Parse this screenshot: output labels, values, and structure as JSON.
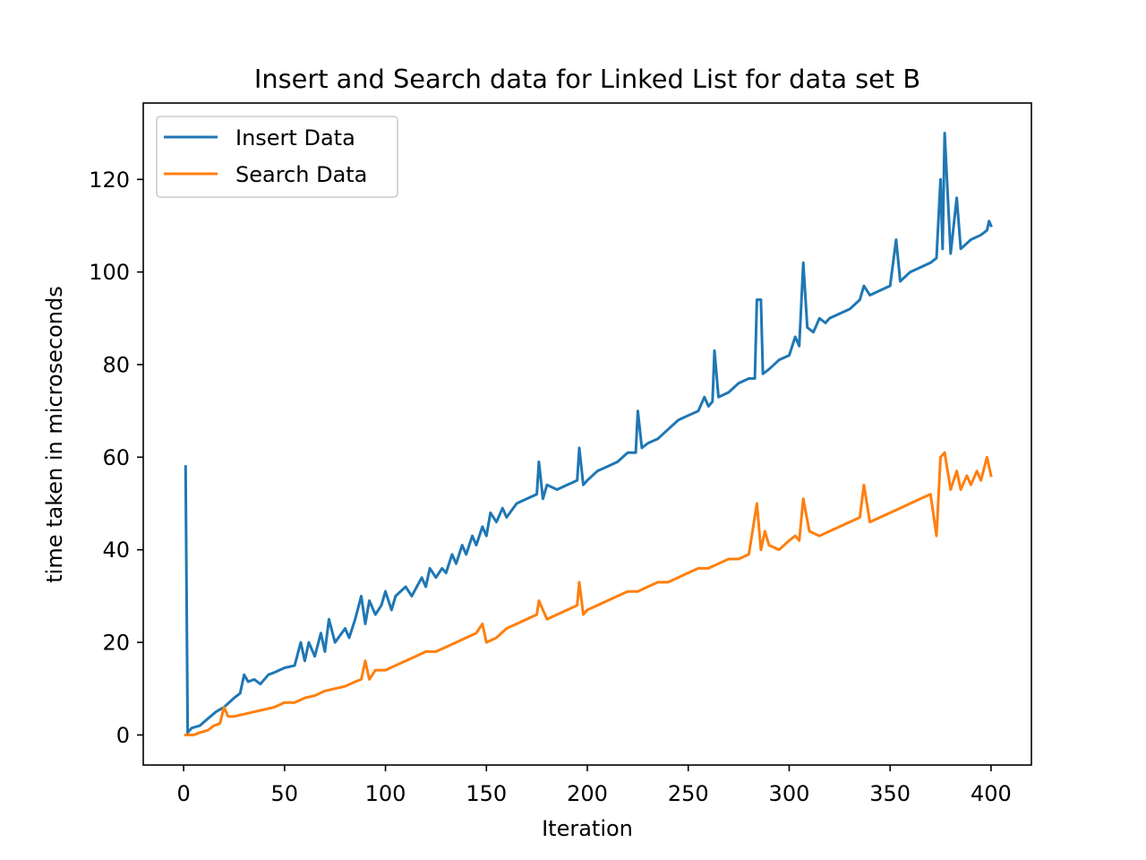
{
  "chart_data": {
    "type": "line",
    "title": "Insert and Search data for Linked List for data set B",
    "xlabel": "Iteration",
    "ylabel": "time taken in microseconds",
    "xlim": [
      -20,
      420
    ],
    "ylim": [
      -6.5,
      136.5
    ],
    "xticks": [
      0,
      50,
      100,
      150,
      200,
      250,
      300,
      350,
      400
    ],
    "yticks": [
      0,
      20,
      40,
      60,
      80,
      100,
      120
    ],
    "grid": false,
    "legend_position": "top-left",
    "series": [
      {
        "name": "Insert Data",
        "color": "#1f77b4",
        "points": [
          [
            1,
            58
          ],
          [
            2,
            0.5
          ],
          [
            4,
            1.5
          ],
          [
            8,
            2
          ],
          [
            12,
            3.5
          ],
          [
            16,
            5
          ],
          [
            20,
            6
          ],
          [
            25,
            8
          ],
          [
            28,
            9
          ],
          [
            30,
            13
          ],
          [
            32,
            11.5
          ],
          [
            35,
            12
          ],
          [
            38,
            11
          ],
          [
            42,
            13
          ],
          [
            45,
            13.5
          ],
          [
            50,
            14.5
          ],
          [
            55,
            15
          ],
          [
            58,
            20
          ],
          [
            60,
            16
          ],
          [
            62,
            20
          ],
          [
            65,
            17
          ],
          [
            68,
            22
          ],
          [
            70,
            18
          ],
          [
            72,
            25
          ],
          [
            75,
            20
          ],
          [
            80,
            23
          ],
          [
            82,
            21
          ],
          [
            85,
            25
          ],
          [
            88,
            30
          ],
          [
            90,
            24
          ],
          [
            92,
            29
          ],
          [
            95,
            26
          ],
          [
            98,
            28
          ],
          [
            100,
            31
          ],
          [
            103,
            27
          ],
          [
            105,
            30
          ],
          [
            110,
            32
          ],
          [
            113,
            30
          ],
          [
            118,
            34
          ],
          [
            120,
            32
          ],
          [
            122,
            36
          ],
          [
            125,
            34
          ],
          [
            128,
            36
          ],
          [
            130,
            35
          ],
          [
            133,
            39
          ],
          [
            135,
            37
          ],
          [
            138,
            41
          ],
          [
            140,
            39
          ],
          [
            143,
            43
          ],
          [
            145,
            41
          ],
          [
            148,
            45
          ],
          [
            150,
            43
          ],
          [
            152,
            48
          ],
          [
            155,
            46
          ],
          [
            158,
            49
          ],
          [
            160,
            47
          ],
          [
            165,
            50
          ],
          [
            170,
            51
          ],
          [
            175,
            52
          ],
          [
            176,
            59
          ],
          [
            178,
            51
          ],
          [
            180,
            54
          ],
          [
            185,
            53
          ],
          [
            190,
            54
          ],
          [
            195,
            55
          ],
          [
            196,
            62
          ],
          [
            198,
            54
          ],
          [
            200,
            55
          ],
          [
            205,
            57
          ],
          [
            210,
            58
          ],
          [
            215,
            59
          ],
          [
            220,
            61
          ],
          [
            224,
            61
          ],
          [
            225,
            70
          ],
          [
            227,
            62
          ],
          [
            230,
            63
          ],
          [
            235,
            64
          ],
          [
            240,
            66
          ],
          [
            245,
            68
          ],
          [
            250,
            69
          ],
          [
            255,
            70
          ],
          [
            258,
            73
          ],
          [
            260,
            71
          ],
          [
            262,
            72
          ],
          [
            263,
            83
          ],
          [
            265,
            73
          ],
          [
            270,
            74
          ],
          [
            275,
            76
          ],
          [
            280,
            77
          ],
          [
            283,
            77
          ],
          [
            284,
            94
          ],
          [
            286,
            94
          ],
          [
            287,
            78
          ],
          [
            290,
            79
          ],
          [
            295,
            81
          ],
          [
            300,
            82
          ],
          [
            303,
            86
          ],
          [
            305,
            84
          ],
          [
            307,
            102
          ],
          [
            309,
            88
          ],
          [
            312,
            87
          ],
          [
            315,
            90
          ],
          [
            318,
            89
          ],
          [
            320,
            90
          ],
          [
            325,
            91
          ],
          [
            330,
            92
          ],
          [
            335,
            94
          ],
          [
            337,
            97
          ],
          [
            340,
            95
          ],
          [
            345,
            96
          ],
          [
            350,
            97
          ],
          [
            353,
            107
          ],
          [
            355,
            98
          ],
          [
            360,
            100
          ],
          [
            365,
            101
          ],
          [
            370,
            102
          ],
          [
            373,
            103
          ],
          [
            375,
            120
          ],
          [
            376,
            105
          ],
          [
            377,
            130
          ],
          [
            380,
            104
          ],
          [
            383,
            116
          ],
          [
            385,
            105
          ],
          [
            390,
            107
          ],
          [
            395,
            108
          ],
          [
            398,
            109
          ],
          [
            399,
            111
          ],
          [
            400,
            110
          ]
        ]
      },
      {
        "name": "Search Data",
        "color": "#ff7f0e",
        "points": [
          [
            1,
            0
          ],
          [
            5,
            0
          ],
          [
            8,
            0.5
          ],
          [
            12,
            1
          ],
          [
            15,
            2
          ],
          [
            18,
            2.5
          ],
          [
            20,
            6
          ],
          [
            22,
            4
          ],
          [
            25,
            4
          ],
          [
            30,
            4.5
          ],
          [
            35,
            5
          ],
          [
            40,
            5.5
          ],
          [
            45,
            6
          ],
          [
            50,
            7
          ],
          [
            55,
            7
          ],
          [
            60,
            8
          ],
          [
            65,
            8.5
          ],
          [
            70,
            9.5
          ],
          [
            75,
            10
          ],
          [
            80,
            10.5
          ],
          [
            85,
            11.5
          ],
          [
            88,
            12
          ],
          [
            90,
            16
          ],
          [
            92,
            12
          ],
          [
            95,
            14
          ],
          [
            100,
            14
          ],
          [
            105,
            15
          ],
          [
            110,
            16
          ],
          [
            115,
            17
          ],
          [
            120,
            18
          ],
          [
            125,
            18
          ],
          [
            130,
            19
          ],
          [
            135,
            20
          ],
          [
            140,
            21
          ],
          [
            145,
            22
          ],
          [
            148,
            24
          ],
          [
            150,
            20
          ],
          [
            155,
            21
          ],
          [
            160,
            23
          ],
          [
            165,
            24
          ],
          [
            170,
            25
          ],
          [
            175,
            26
          ],
          [
            176,
            29
          ],
          [
            180,
            25
          ],
          [
            185,
            26
          ],
          [
            190,
            27
          ],
          [
            195,
            28
          ],
          [
            196,
            33
          ],
          [
            198,
            26
          ],
          [
            200,
            27
          ],
          [
            205,
            28
          ],
          [
            210,
            29
          ],
          [
            215,
            30
          ],
          [
            220,
            31
          ],
          [
            225,
            31
          ],
          [
            230,
            32
          ],
          [
            235,
            33
          ],
          [
            240,
            33
          ],
          [
            245,
            34
          ],
          [
            250,
            35
          ],
          [
            255,
            36
          ],
          [
            260,
            36
          ],
          [
            265,
            37
          ],
          [
            270,
            38
          ],
          [
            275,
            38
          ],
          [
            280,
            39
          ],
          [
            284,
            50
          ],
          [
            286,
            40
          ],
          [
            288,
            44
          ],
          [
            290,
            41
          ],
          [
            295,
            40
          ],
          [
            300,
            42
          ],
          [
            303,
            43
          ],
          [
            305,
            42
          ],
          [
            307,
            51
          ],
          [
            310,
            44
          ],
          [
            315,
            43
          ],
          [
            320,
            44
          ],
          [
            325,
            45
          ],
          [
            330,
            46
          ],
          [
            335,
            47
          ],
          [
            337,
            54
          ],
          [
            340,
            46
          ],
          [
            345,
            47
          ],
          [
            350,
            48
          ],
          [
            355,
            49
          ],
          [
            360,
            50
          ],
          [
            365,
            51
          ],
          [
            370,
            52
          ],
          [
            373,
            43
          ],
          [
            375,
            60
          ],
          [
            377,
            61
          ],
          [
            380,
            53
          ],
          [
            383,
            57
          ],
          [
            385,
            53
          ],
          [
            388,
            56
          ],
          [
            390,
            54
          ],
          [
            393,
            57
          ],
          [
            395,
            55
          ],
          [
            398,
            60
          ],
          [
            400,
            56
          ]
        ]
      }
    ]
  }
}
